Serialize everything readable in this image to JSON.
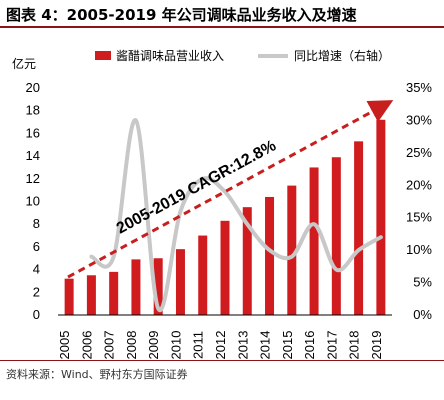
{
  "title": "图表 4：2005-2019 年公司调味品业务收入及增速",
  "source": "资料来源：Wind、野村东方国际证券",
  "colors": {
    "bar": "#d01c1f",
    "line": "#c8c8c8",
    "arrow": "#c81e1e",
    "rule": "#8b1414"
  },
  "chart_data": {
    "type": "bar",
    "categories": [
      "2005",
      "2006",
      "2007",
      "2008",
      "2009",
      "2010",
      "2011",
      "2012",
      "2013",
      "2014",
      "2015",
      "2016",
      "2017",
      "2018",
      "2019"
    ],
    "series": [
      {
        "name": "酱醋调味品营业收入",
        "axis": "left",
        "values": [
          3.2,
          3.5,
          3.8,
          4.9,
          5.0,
          5.8,
          7.0,
          8.3,
          9.5,
          10.4,
          11.4,
          13.0,
          13.9,
          15.3,
          17.2
        ]
      },
      {
        "name": "同比增速（右轴）",
        "axis": "right",
        "type": "line",
        "values": [
          null,
          9,
          9,
          30,
          1,
          16,
          21,
          19,
          14,
          10,
          9,
          14,
          7,
          10,
          12
        ]
      }
    ],
    "ylabel": "亿元",
    "ylim": [
      0,
      20
    ],
    "yticks": [
      "0",
      "2",
      "4",
      "6",
      "8",
      "10",
      "12",
      "14",
      "16",
      "18",
      "20"
    ],
    "y2lim": [
      0,
      35
    ],
    "y2ticks": [
      "0%",
      "5%",
      "10%",
      "15%",
      "20%",
      "25%",
      "30%",
      "35%"
    ],
    "annotation": "2005-2019 CAGR:12.8%",
    "legend_position": "top"
  }
}
